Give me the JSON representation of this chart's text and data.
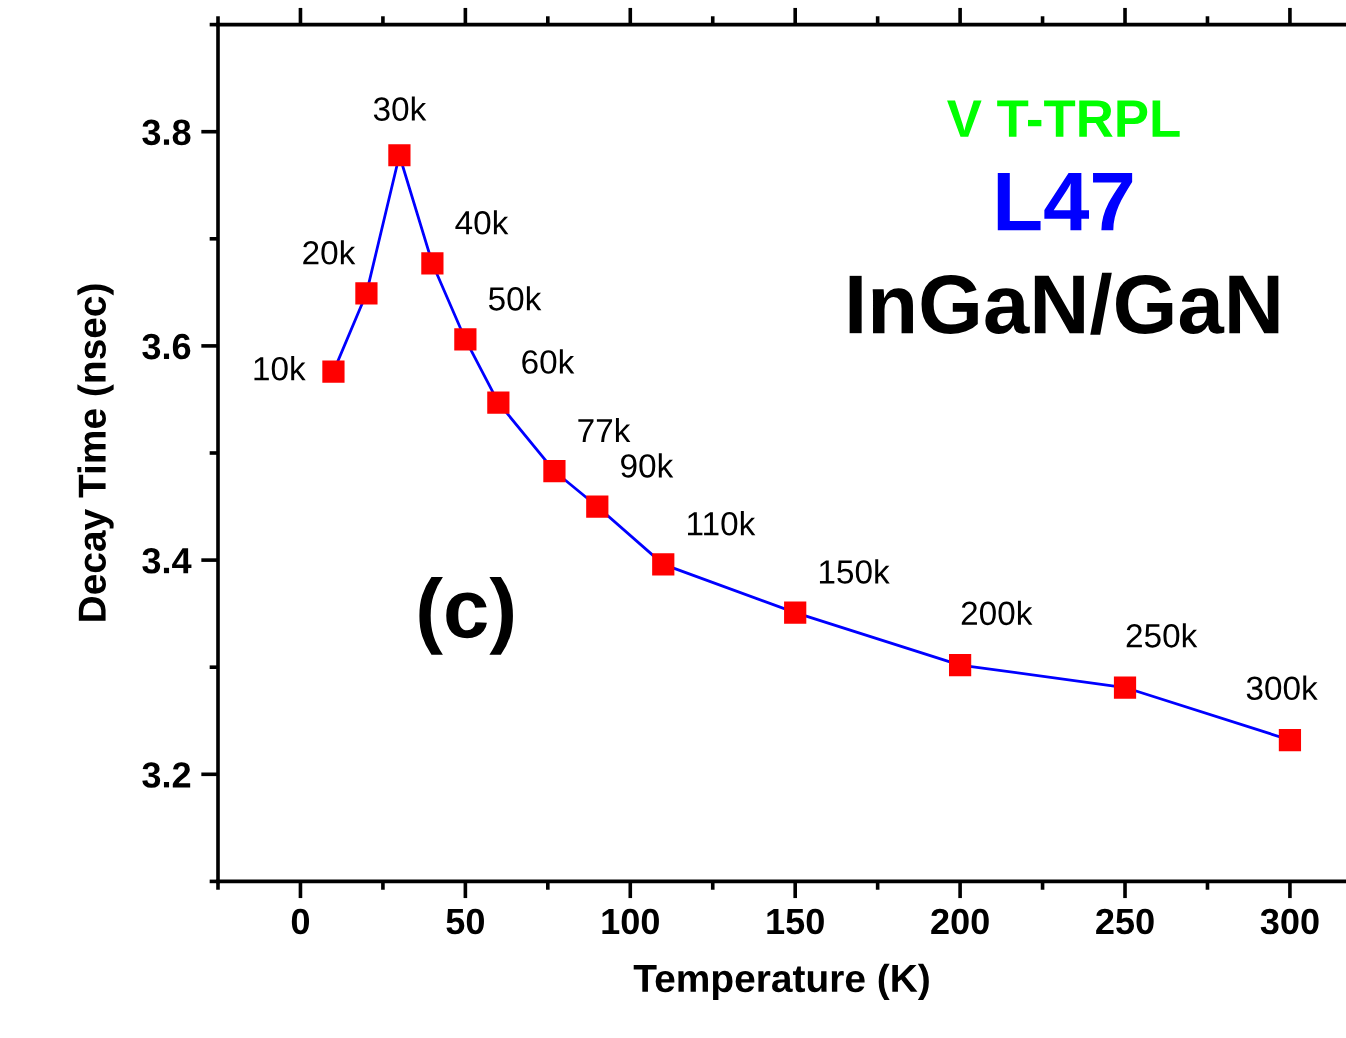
{
  "chart_data": {
    "type": "line",
    "xlabel": "Temperature (K)",
    "ylabel": "Decay Time (nsec)",
    "x": [
      10,
      20,
      30,
      40,
      50,
      60,
      77,
      90,
      110,
      150,
      200,
      250,
      300
    ],
    "series": [
      {
        "color": "#0000ff",
        "values": [
          3.576,
          3.649,
          3.778,
          3.677,
          3.606,
          3.547,
          3.483,
          3.45,
          3.396,
          3.351,
          3.302,
          3.281,
          3.232
        ]
      }
    ],
    "marker": "square",
    "line_style": "solid",
    "grid": false,
    "legend": false,
    "xlim": [
      -25,
      317
    ],
    "xticks": [
      0,
      50,
      100,
      150,
      200,
      250,
      300
    ],
    "ylim": [
      3.1,
      3.9
    ],
    "yticks": [
      3.2,
      3.4,
      3.6,
      3.8
    ],
    "annotations": [
      {
        "text": "10k",
        "x": 10,
        "y": 3.576
      },
      {
        "text": "20k",
        "x": 20,
        "y": 3.649
      },
      {
        "text": "30k",
        "x": 30,
        "y": 3.778
      },
      {
        "text": "40k",
        "x": 40,
        "y": 3.677
      },
      {
        "text": "50k",
        "x": 50,
        "y": 3.606
      },
      {
        "text": "60k",
        "x": 60,
        "y": 3.547
      },
      {
        "text": "77k",
        "x": 77,
        "y": 3.483
      },
      {
        "text": "90k",
        "x": 90,
        "y": 3.45
      },
      {
        "text": "110k",
        "x": 110,
        "y": 3.396
      },
      {
        "text": "150k",
        "x": 150,
        "y": 3.351
      },
      {
        "text": "200k",
        "x": 200,
        "y": 3.302
      },
      {
        "text": "250k",
        "x": 250,
        "y": 3.281
      },
      {
        "text": "300k",
        "x": 300,
        "y": 3.232
      },
      "(c)",
      "V T-TRPL",
      "L47",
      "InGaN/GaN"
    ]
  }
}
